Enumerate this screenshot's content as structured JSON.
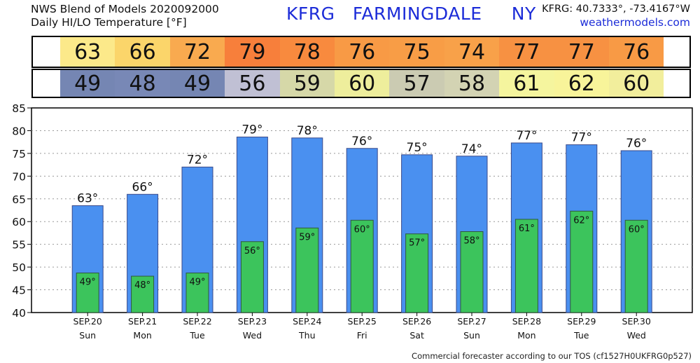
{
  "header": {
    "line1": "NWS Blend of Models 2020092000",
    "line2": "Daily HI/LO Temperature [°F]",
    "station": "KFRG   FARMINGDALE     NY",
    "coords": "KFRG: 40.7333°, -73.4167°W",
    "site": "weathermodels.com"
  },
  "hi_band": {
    "values": [
      "63",
      "66",
      "72",
      "79",
      "78",
      "76",
      "75",
      "74",
      "77",
      "77",
      "76"
    ],
    "colors": [
      "#fce98a",
      "#fbd56a",
      "#f9aa4f",
      "#f77f3b",
      "#f88a3e",
      "#f89a45",
      "#f89d46",
      "#f8a149",
      "#f79142",
      "#f79142",
      "#f89a45"
    ]
  },
  "lo_band": {
    "values": [
      "49",
      "48",
      "49",
      "56",
      "59",
      "60",
      "57",
      "58",
      "61",
      "62",
      "60"
    ],
    "colors": [
      "#7586b3",
      "#7888b6",
      "#7586b3",
      "#c0c0d4",
      "#d6d8a8",
      "#eeee9c",
      "#cbcbb2",
      "#d3d3b3",
      "#f5f59e",
      "#f8f49a",
      "#f2ee9c"
    ]
  },
  "chart_data": {
    "type": "bar",
    "categories": [
      "SEP.20",
      "SEP.21",
      "SEP.22",
      "SEP.23",
      "SEP.24",
      "SEP.25",
      "SEP.26",
      "SEP.27",
      "SEP.28",
      "SEP.29",
      "SEP.30"
    ],
    "days": [
      "Sun",
      "Mon",
      "Tue",
      "Wed",
      "Thu",
      "Fri",
      "Sat",
      "Sun",
      "Mon",
      "Tue",
      "Wed"
    ],
    "series": [
      {
        "values": [
          63.5,
          66,
          72,
          78.6,
          78.4,
          76.1,
          74.7,
          74.4,
          77.3,
          76.9,
          75.6
        ],
        "color": "#4a90f0"
      },
      {
        "values": [
          48.7,
          48,
          48.7,
          55.6,
          58.6,
          60.3,
          57.3,
          57.8,
          60.5,
          62.3,
          60.3
        ],
        "color": "#3cc45c"
      }
    ],
    "hi_labels": [
      "63°",
      "66°",
      "72°",
      "79°",
      "78°",
      "76°",
      "75°",
      "74°",
      "77°",
      "77°",
      "76°"
    ],
    "lo_labels": [
      "49°",
      "48°",
      "49°",
      "56°",
      "59°",
      "60°",
      "57°",
      "58°",
      "61°",
      "62°",
      "60°"
    ],
    "yticks": [
      "40",
      "45",
      "50",
      "55",
      "60",
      "65",
      "70",
      "75",
      "80",
      "85"
    ],
    "ylim": [
      40,
      85
    ],
    "grid": true
  },
  "footer": "Commercial forecaster according to our TOS (cf1527H0UKFRG0p527)"
}
